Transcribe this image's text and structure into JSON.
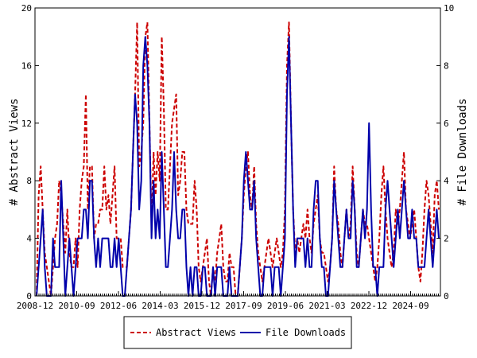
{
  "chart_data": {
    "type": "line",
    "y_left_label": "# Abstract Views",
    "y_right_label": "# File Downloads",
    "y_left_ylim": [
      0,
      20
    ],
    "y_right_ylim": [
      0,
      10
    ],
    "y_left_ticks": [
      "0",
      "4",
      "8",
      "12",
      "16",
      "20"
    ],
    "y_right_ticks": [
      "0",
      "2",
      "4",
      "6",
      "8",
      "10"
    ],
    "x_tick_labels": [
      "2008-12",
      "2010-09",
      "2012-06",
      "2014-03",
      "2015-12",
      "2017-09",
      "2019-06",
      "2021-03",
      "2022-12",
      "2024-09"
    ],
    "x_range": [
      "2008-12",
      "2025-12"
    ],
    "legend_position": "bottom-center",
    "series": [
      {
        "name": "Abstract Views",
        "axis": "left",
        "color": "#cc0000",
        "dash": "dashed",
        "values": [
          0,
          7,
          9,
          6,
          3,
          2,
          1,
          0,
          2,
          4,
          5,
          8,
          7,
          5,
          3,
          6,
          3,
          2,
          2,
          4,
          2,
          6,
          8,
          9,
          14,
          6,
          9,
          9,
          4,
          5,
          5,
          6,
          6,
          9,
          6,
          7,
          5,
          7,
          9,
          4,
          4,
          4,
          2,
          2,
          2,
          4,
          6,
          10,
          14,
          19,
          9,
          10,
          12,
          18,
          19,
          12,
          5,
          10,
          7,
          10,
          8,
          18,
          13,
          6,
          6,
          9,
          12,
          13,
          14,
          7,
          8,
          10,
          10,
          6,
          5,
          5,
          5,
          8,
          6,
          2,
          1,
          2,
          3,
          4,
          1,
          0,
          2,
          1,
          3,
          4,
          5,
          2,
          1,
          1,
          3,
          2,
          2,
          0,
          0,
          2,
          4,
          7,
          9,
          10,
          7,
          6,
          9,
          5,
          3,
          2,
          1,
          2,
          3,
          4,
          3,
          2,
          3,
          4,
          3,
          2,
          3,
          6,
          16,
          19,
          12,
          6,
          3,
          4,
          3,
          4,
          5,
          4,
          6,
          4,
          3,
          5,
          6,
          7,
          4,
          3,
          3,
          2,
          1,
          2,
          4,
          9,
          6,
          5,
          3,
          2,
          4,
          6,
          4,
          5,
          9,
          6,
          3,
          2,
          4,
          6,
          5,
          5,
          4,
          3,
          2,
          1,
          2,
          4,
          7,
          9,
          6,
          4,
          3,
          2,
          3,
          6,
          5,
          6,
          8,
          10,
          6,
          5,
          4,
          5,
          6,
          4,
          2,
          1,
          3,
          6,
          8,
          7,
          5,
          3,
          7,
          8,
          6
        ]
      },
      {
        "name": "File Downloads",
        "axis": "right",
        "color": "#0000aa",
        "dash": "solid",
        "values": [
          0,
          1,
          2,
          3,
          1,
          0,
          0,
          0,
          2,
          1,
          1,
          1,
          4,
          2,
          0,
          1,
          2,
          1,
          0,
          1,
          2,
          2,
          2,
          3,
          3,
          2,
          4,
          4,
          2,
          1,
          2,
          1,
          2,
          2,
          2,
          2,
          1,
          1,
          2,
          1,
          2,
          1,
          0,
          0,
          1,
          2,
          3,
          5,
          7,
          6,
          3,
          4,
          8,
          9,
          8,
          6,
          2,
          4,
          2,
          3,
          2,
          5,
          3,
          1,
          1,
          2,
          3,
          5,
          3,
          2,
          2,
          3,
          3,
          1,
          0,
          1,
          0,
          1,
          1,
          0,
          0,
          1,
          1,
          0,
          0,
          0,
          1,
          0,
          1,
          1,
          1,
          0,
          0,
          0,
          1,
          0,
          0,
          0,
          0,
          1,
          2,
          4,
          5,
          4,
          3,
          3,
          4,
          2,
          1,
          0,
          0,
          1,
          1,
          1,
          1,
          0,
          1,
          1,
          1,
          0,
          1,
          2,
          7,
          9,
          6,
          3,
          1,
          2,
          2,
          2,
          2,
          1,
          2,
          1,
          1,
          3,
          4,
          4,
          2,
          1,
          1,
          0,
          0,
          1,
          2,
          4,
          3,
          2,
          1,
          1,
          2,
          3,
          2,
          2,
          4,
          3,
          1,
          1,
          2,
          3,
          2,
          3,
          6,
          3,
          1,
          1,
          0,
          1,
          1,
          1,
          3,
          4,
          3,
          2,
          1,
          2,
          3,
          2,
          3,
          4,
          3,
          2,
          2,
          3,
          2,
          2,
          1,
          1,
          1,
          1,
          2,
          3,
          2,
          1,
          2,
          3,
          2
        ]
      }
    ]
  }
}
